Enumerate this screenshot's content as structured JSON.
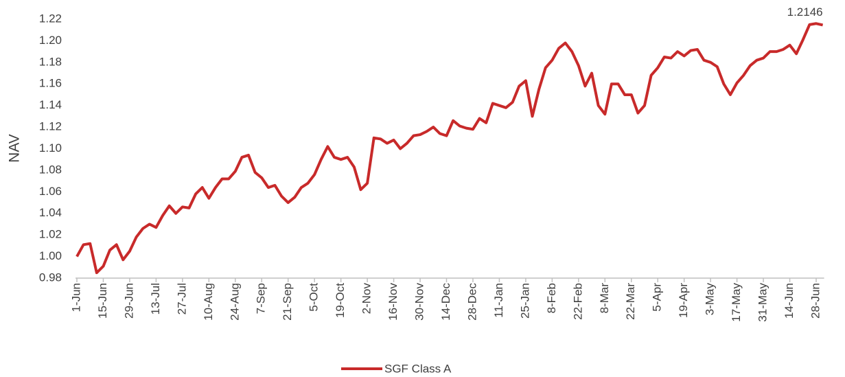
{
  "chart_data": {
    "type": "line",
    "y_label": "NAV",
    "annotation": "1.2146",
    "categories": [
      "1-Jun",
      null,
      null,
      null,
      "15-Jun",
      null,
      null,
      null,
      "29-Jun",
      null,
      null,
      null,
      "13-Jul",
      null,
      null,
      null,
      "27-Jul",
      null,
      null,
      null,
      "10-Aug",
      null,
      null,
      null,
      "24-Aug",
      null,
      null,
      null,
      "7-Sep",
      null,
      null,
      null,
      "21-Sep",
      null,
      null,
      null,
      "5-Oct",
      null,
      null,
      null,
      "19-Oct",
      null,
      null,
      null,
      "2-Nov",
      null,
      null,
      null,
      "16-Nov",
      null,
      null,
      null,
      "30-Nov",
      null,
      null,
      null,
      "14-Dec",
      null,
      null,
      null,
      "28-Dec",
      null,
      null,
      null,
      "11-Jan",
      null,
      null,
      null,
      "25-Jan",
      null,
      null,
      null,
      "8-Feb",
      null,
      null,
      null,
      "22-Feb",
      null,
      null,
      null,
      "8-Mar",
      null,
      null,
      null,
      "22-Mar",
      null,
      null,
      null,
      "5-Apr",
      null,
      null,
      null,
      "19-Apr",
      null,
      null,
      null,
      "3-May",
      null,
      null,
      null,
      "17-May",
      null,
      null,
      null,
      "31-May",
      null,
      null,
      null,
      "14-Jun",
      null,
      null,
      null,
      "28-Jun",
      null
    ],
    "series": [
      {
        "name": "SGF Class A",
        "color": "#c82a2a",
        "values": [
          1.0,
          1.011,
          1.012,
          0.985,
          0.991,
          1.006,
          1.011,
          0.997,
          1.005,
          1.018,
          1.026,
          1.03,
          1.027,
          1.038,
          1.047,
          1.04,
          1.046,
          1.045,
          1.058,
          1.064,
          1.054,
          1.064,
          1.072,
          1.072,
          1.079,
          1.092,
          1.094,
          1.078,
          1.073,
          1.064,
          1.066,
          1.056,
          1.05,
          1.055,
          1.064,
          1.068,
          1.076,
          1.09,
          1.102,
          1.092,
          1.09,
          1.092,
          1.083,
          1.062,
          1.068,
          1.11,
          1.109,
          1.105,
          1.108,
          1.1,
          1.105,
          1.112,
          1.113,
          1.116,
          1.12,
          1.114,
          1.112,
          1.126,
          1.121,
          1.119,
          1.118,
          1.128,
          1.124,
          1.142,
          1.14,
          1.138,
          1.143,
          1.158,
          1.163,
          1.13,
          1.155,
          1.175,
          1.182,
          1.193,
          1.198,
          1.19,
          1.177,
          1.158,
          1.17,
          1.14,
          1.132,
          1.16,
          1.16,
          1.15,
          1.15,
          1.133,
          1.14,
          1.168,
          1.175,
          1.185,
          1.184,
          1.19,
          1.186,
          1.191,
          1.192,
          1.182,
          1.18,
          1.176,
          1.16,
          1.15,
          1.161,
          1.168,
          1.177,
          1.182,
          1.184,
          1.19,
          1.19,
          1.192,
          1.196,
          1.188,
          1.201,
          1.215,
          1.216,
          1.2146
        ]
      }
    ],
    "ylim": [
      0.98,
      1.22
    ],
    "yticks": [
      0.98,
      {
        "value": 1.0,
        "label": "1.00"
      },
      1.02,
      1.04,
      1.06,
      1.08,
      {
        "value": 1.1,
        "label": "1.10"
      },
      1.12,
      1.14,
      1.16,
      1.18,
      {
        "value": 1.2,
        "label": "1.20"
      },
      1.22
    ],
    "grid": false,
    "legend": "bottom"
  }
}
